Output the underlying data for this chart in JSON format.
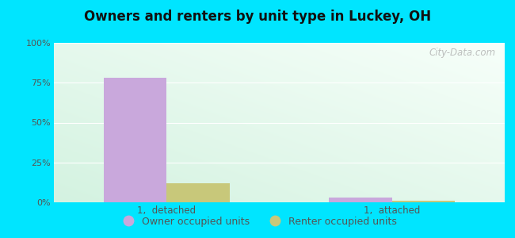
{
  "title": "Owners and renters by unit type in Luckey, OH",
  "categories": [
    "1,  detached",
    "1,  attached"
  ],
  "owner_values": [
    78,
    3
  ],
  "renter_values": [
    12,
    1
  ],
  "owner_color": "#c9a8dc",
  "renter_color": "#c8c87a",
  "owner_label": "Owner occupied units",
  "renter_label": "Renter occupied units",
  "yticks": [
    0,
    25,
    50,
    75,
    100
  ],
  "ytick_labels": [
    "0%",
    "25%",
    "50%",
    "75%",
    "100%"
  ],
  "ylim": [
    0,
    100
  ],
  "bg_outer": "#00e5ff",
  "watermark": "City-Data.com",
  "bar_width": 0.28
}
